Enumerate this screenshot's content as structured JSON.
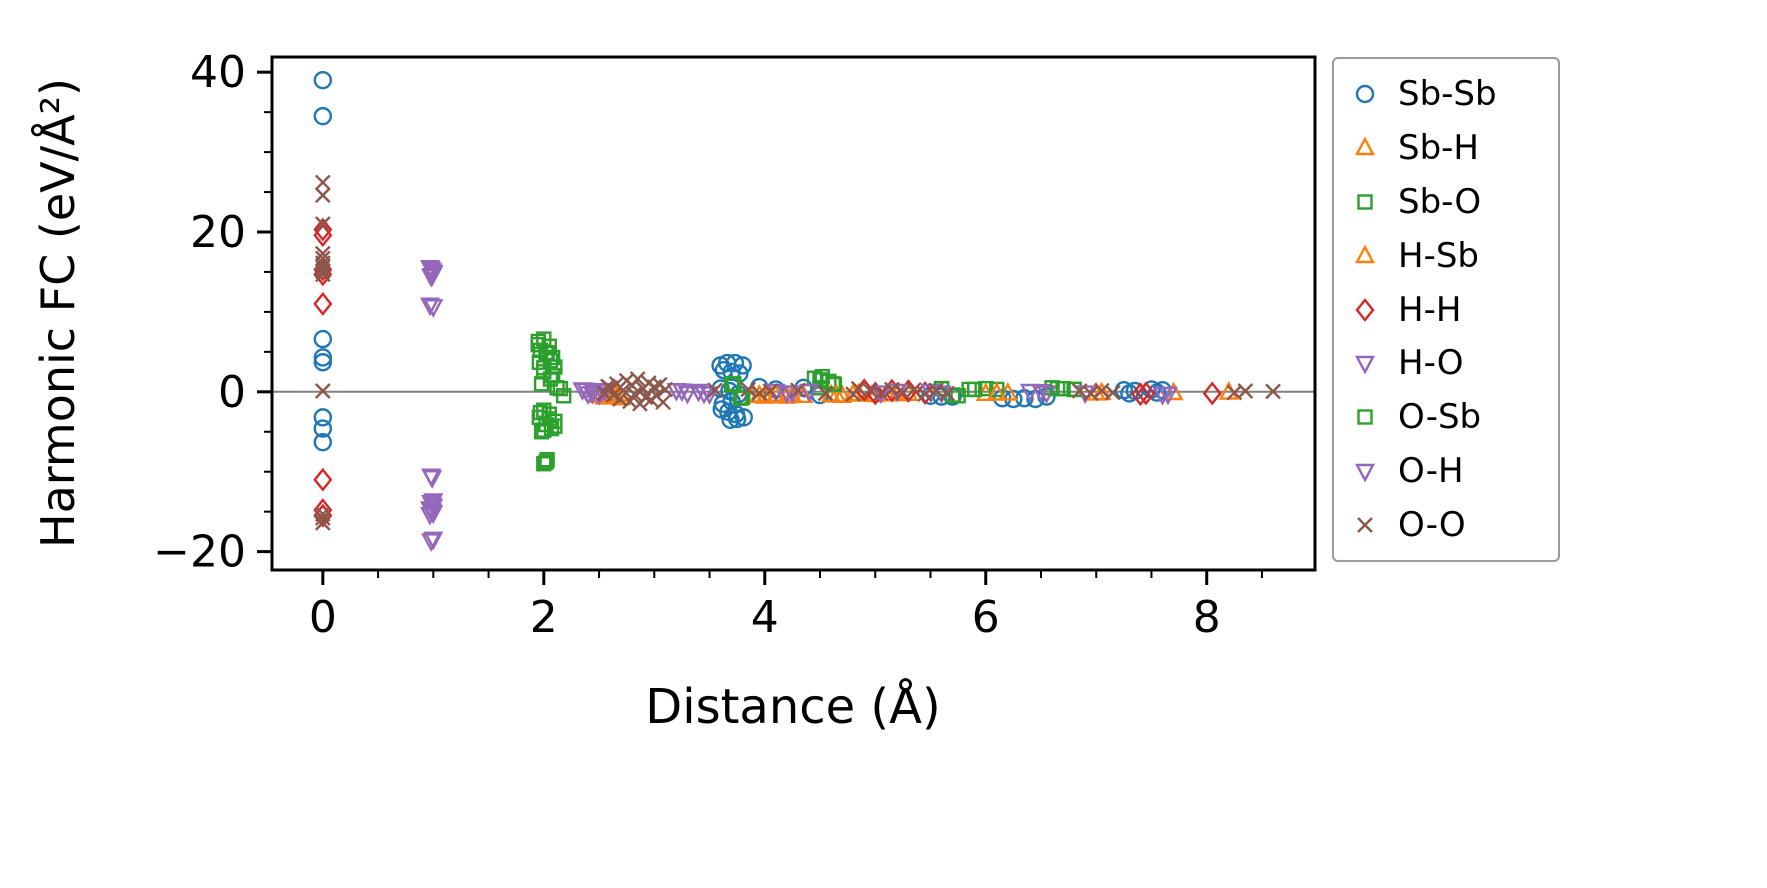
{
  "chart_data": {
    "type": "scatter",
    "title": "",
    "xlabel": "Distance (Å)",
    "ylabel": "Harmonic FC (eV/Å²)",
    "xlim": [
      -0.46,
      8.98
    ],
    "ylim": [
      -22.3,
      41.9
    ],
    "xticks": [
      0,
      2,
      4,
      6,
      8
    ],
    "xtick_labels": [
      "0",
      "2",
      "4",
      "6",
      "8"
    ],
    "yticks": [
      -20,
      0,
      20,
      40
    ],
    "ytick_labels": [
      "−20",
      "0",
      "20",
      "40"
    ],
    "minor_x_step": 0.5,
    "minor_y_step": 5,
    "grid": false,
    "zero_line": {
      "y": 0,
      "color": "#808080"
    },
    "legend_position": "outside-right",
    "frame_color": "#000000",
    "series": [
      {
        "name": "Sb-Sb",
        "marker": "circle",
        "color": "#1f77b4",
        "points": [
          [
            0,
            39
          ],
          [
            0,
            34.5
          ],
          [
            0,
            6.6
          ],
          [
            0,
            4.3
          ],
          [
            0,
            3.7
          ],
          [
            0,
            -3.2
          ],
          [
            0,
            -4.6
          ],
          [
            0,
            -6.3
          ],
          [
            3.6,
            3.3
          ],
          [
            3.66,
            3.6
          ],
          [
            3.73,
            3.6
          ],
          [
            3.8,
            3.3
          ],
          [
            3.63,
            2.7
          ],
          [
            3.7,
            2.5
          ],
          [
            3.77,
            2.3
          ],
          [
            3.6,
            0.4
          ],
          [
            3.68,
            0.1
          ],
          [
            3.76,
            -0.3
          ],
          [
            3.62,
            -1.5
          ],
          [
            3.7,
            -1.2
          ],
          [
            3.61,
            -2.2
          ],
          [
            3.67,
            -2.5
          ],
          [
            3.74,
            -2.8
          ],
          [
            3.81,
            -3.2
          ],
          [
            3.69,
            -3.5
          ],
          [
            3.75,
            -3.4
          ],
          [
            3.95,
            0.6
          ],
          [
            4.1,
            0.3
          ],
          [
            4.35,
            0.5
          ],
          [
            4.5,
            -0.4
          ],
          [
            5.5,
            -0.5
          ],
          [
            5.6,
            -0.6
          ],
          [
            5.7,
            -0.6
          ],
          [
            6.15,
            -0.8
          ],
          [
            6.25,
            -0.9
          ],
          [
            6.35,
            -0.8
          ],
          [
            6.45,
            -0.9
          ],
          [
            6.55,
            -0.6
          ],
          [
            7.25,
            0.2
          ],
          [
            7.3,
            -0.2
          ],
          [
            7.35,
            0.1
          ],
          [
            7.5,
            0.3
          ],
          [
            7.55,
            -0.1
          ],
          [
            7.6,
            0.2
          ]
        ]
      },
      {
        "name": "Sb-H",
        "marker": "triangle-up",
        "color": "#ff7f0e",
        "points": [
          [
            2.5,
            -0.5
          ],
          [
            2.55,
            -0.7
          ],
          [
            2.6,
            -0.6
          ],
          [
            2.65,
            -0.4
          ],
          [
            2.7,
            -0.8
          ],
          [
            3.9,
            -0.5
          ],
          [
            4.0,
            -0.6
          ],
          [
            4.1,
            -0.4
          ],
          [
            4.2,
            -0.6
          ],
          [
            4.35,
            -0.5
          ],
          [
            4.6,
            -0.4
          ],
          [
            4.7,
            -0.5
          ],
          [
            4.85,
            -0.3
          ],
          [
            5.0,
            -0.4
          ],
          [
            5.2,
            -0.3
          ],
          [
            6.0,
            -0.25
          ],
          [
            6.2,
            -0.2
          ],
          [
            7.0,
            -0.2
          ],
          [
            7.7,
            -0.15
          ]
        ]
      },
      {
        "name": "Sb-O",
        "marker": "square",
        "color": "#2ca02c",
        "points": [
          [
            1.95,
            6.3
          ],
          [
            2.0,
            6.6
          ],
          [
            2.05,
            5.7
          ],
          [
            1.97,
            5.2
          ],
          [
            2.02,
            4.8
          ],
          [
            2.08,
            4.3
          ],
          [
            1.96,
            3.7
          ],
          [
            2.1,
            3.1
          ],
          [
            2.0,
            2.5
          ],
          [
            2.06,
            1.6
          ],
          [
            1.98,
            1.0
          ],
          [
            2.12,
            0.5
          ],
          [
            2.0,
            -2.3
          ],
          [
            2.05,
            -2.8
          ],
          [
            1.96,
            -3.2
          ],
          [
            2.1,
            -3.7
          ],
          [
            2.02,
            -4.1
          ],
          [
            2.07,
            -4.6
          ],
          [
            1.98,
            -5.0
          ],
          [
            2.03,
            -8.5
          ],
          [
            2.0,
            -9.0
          ],
          [
            2.15,
            0.4
          ],
          [
            2.18,
            -0.5
          ],
          [
            3.7,
            0.9
          ],
          [
            3.8,
            -0.7
          ],
          [
            4.45,
            1.7
          ],
          [
            4.52,
            1.9
          ],
          [
            4.58,
            1.3
          ],
          [
            4.63,
            0.9
          ],
          [
            4.5,
            0.5
          ],
          [
            5.6,
            0.4
          ],
          [
            5.7,
            -0.4
          ],
          [
            5.85,
            0.3
          ],
          [
            6.0,
            0.4
          ],
          [
            6.1,
            0.3
          ],
          [
            6.6,
            0.5
          ],
          [
            6.7,
            0.4
          ],
          [
            6.8,
            0.3
          ]
        ]
      },
      {
        "name": "H-Sb",
        "marker": "triangle-up",
        "color": "#ff7f0e",
        "points": [
          [
            2.48,
            -0.4
          ],
          [
            2.56,
            -0.3
          ],
          [
            2.62,
            -0.5
          ],
          [
            2.68,
            -0.35
          ],
          [
            3.95,
            -0.45
          ],
          [
            4.05,
            -0.55
          ],
          [
            4.25,
            -0.45
          ],
          [
            4.65,
            -0.45
          ],
          [
            4.8,
            -0.35
          ],
          [
            5.1,
            -0.3
          ],
          [
            5.3,
            -0.25
          ],
          [
            6.1,
            -0.2
          ],
          [
            7.05,
            -0.15
          ],
          [
            8.2,
            -0.1
          ]
        ]
      },
      {
        "name": "H-H",
        "marker": "diamond",
        "color": "#d62728",
        "points": [
          [
            0,
            20.3
          ],
          [
            0,
            19.6
          ],
          [
            0,
            15.3
          ],
          [
            0,
            14.7
          ],
          [
            0,
            11.0
          ],
          [
            0,
            -11.0
          ],
          [
            0,
            -14.8
          ],
          [
            0,
            -15.5
          ],
          [
            4.9,
            0.2
          ],
          [
            5.0,
            -0.2
          ],
          [
            5.15,
            0.15
          ],
          [
            5.3,
            0.1
          ],
          [
            5.45,
            -0.15
          ],
          [
            7.4,
            -0.3
          ],
          [
            7.45,
            -0.2
          ],
          [
            8.05,
            -0.2
          ]
        ]
      },
      {
        "name": "H-O",
        "marker": "triangle-down",
        "color": "#9467bd",
        "points": [
          [
            0.97,
            15.6
          ],
          [
            0.99,
            15.2
          ],
          [
            1.0,
            14.9
          ],
          [
            0.98,
            14.5
          ],
          [
            1.0,
            10.7
          ],
          [
            0.98,
            -10.5
          ],
          [
            1.0,
            -13.6
          ],
          [
            0.99,
            -14.1
          ],
          [
            0.97,
            -14.6
          ],
          [
            1.0,
            -15.1
          ],
          [
            0.98,
            -18.6
          ],
          [
            2.35,
            0.3
          ],
          [
            2.4,
            -0.2
          ],
          [
            2.45,
            0.15
          ],
          [
            2.5,
            -0.3
          ],
          [
            2.55,
            0.2
          ],
          [
            3.2,
            0.2
          ],
          [
            3.3,
            -0.15
          ],
          [
            3.4,
            0.1
          ],
          [
            3.5,
            -0.2
          ],
          [
            4.1,
            0.1
          ],
          [
            4.25,
            -0.1
          ],
          [
            5.05,
            -0.1
          ],
          [
            5.5,
            0.1
          ],
          [
            6.4,
            0.1
          ],
          [
            6.55,
            -0.1
          ],
          [
            7.6,
            -0.3
          ]
        ]
      },
      {
        "name": "O-Sb",
        "marker": "square",
        "color": "#2ca02c",
        "points": [
          [
            1.95,
            5.9
          ],
          [
            2.03,
            4.9
          ],
          [
            2.06,
            3.9
          ],
          [
            2.0,
            3.0
          ],
          [
            2.08,
            2.0
          ],
          [
            1.97,
            -2.6
          ],
          [
            2.05,
            -3.4
          ],
          [
            2.1,
            -4.3
          ],
          [
            2.0,
            -4.8
          ],
          [
            2.02,
            -8.8
          ],
          [
            3.72,
            1.0
          ],
          [
            3.78,
            -0.8
          ],
          [
            4.5,
            1.5
          ],
          [
            4.62,
            1.0
          ],
          [
            5.6,
            0.4
          ],
          [
            5.75,
            -0.5
          ],
          [
            5.9,
            0.3
          ],
          [
            6.65,
            0.4
          ],
          [
            6.8,
            0.3
          ]
        ]
      },
      {
        "name": "O-H",
        "marker": "triangle-down",
        "color": "#9467bd",
        "points": [
          [
            0.98,
            15.4
          ],
          [
            1.0,
            15.0
          ],
          [
            0.99,
            14.6
          ],
          [
            0.97,
            10.9
          ],
          [
            0.99,
            -10.7
          ],
          [
            0.98,
            -13.8
          ],
          [
            1.0,
            -14.3
          ],
          [
            0.99,
            -14.9
          ],
          [
            0.97,
            -15.3
          ],
          [
            1.0,
            -18.4
          ],
          [
            2.38,
            0.25
          ],
          [
            2.44,
            -0.15
          ],
          [
            2.52,
            0.1
          ],
          [
            3.25,
            0.15
          ],
          [
            3.45,
            -0.15
          ],
          [
            4.2,
            -0.1
          ],
          [
            4.4,
            0.1
          ],
          [
            5.2,
            0.1
          ],
          [
            5.6,
            -0.1
          ],
          [
            6.5,
            0.08
          ],
          [
            6.9,
            -0.1
          ],
          [
            7.65,
            -0.25
          ]
        ]
      },
      {
        "name": "O-O",
        "marker": "x",
        "color": "#8c564b",
        "points": [
          [
            0,
            26.2
          ],
          [
            0,
            24.6
          ],
          [
            0,
            21.0
          ],
          [
            0,
            17.3
          ],
          [
            0,
            16.7
          ],
          [
            0,
            16.1
          ],
          [
            0,
            15.6
          ],
          [
            0,
            15.1
          ],
          [
            0,
            14.7
          ],
          [
            0,
            0.1
          ],
          [
            0,
            -15.3
          ],
          [
            0,
            -15.8
          ],
          [
            0,
            -16.4
          ],
          [
            2.55,
            -0.2
          ],
          [
            2.58,
            0.7
          ],
          [
            2.6,
            0.5
          ],
          [
            2.63,
            -0.4
          ],
          [
            2.66,
            1.0
          ],
          [
            2.69,
            -0.9
          ],
          [
            2.72,
            0.2
          ],
          [
            2.75,
            1.4
          ],
          [
            2.78,
            -1.2
          ],
          [
            2.8,
            0.8
          ],
          [
            2.82,
            -0.3
          ],
          [
            2.85,
            1.6
          ],
          [
            2.87,
            -1.5
          ],
          [
            2.9,
            0.4
          ],
          [
            2.92,
            -0.7
          ],
          [
            2.95,
            1.1
          ],
          [
            2.97,
            -1.0
          ],
          [
            3.0,
            0.6
          ],
          [
            3.02,
            -0.5
          ],
          [
            3.05,
            0.9
          ],
          [
            3.08,
            -1.3
          ],
          [
            3.1,
            0.3
          ],
          [
            3.55,
            0.2
          ],
          [
            3.85,
            0.3
          ],
          [
            3.95,
            -0.2
          ],
          [
            4.05,
            0.1
          ],
          [
            4.3,
            0.2
          ],
          [
            4.55,
            -0.2
          ],
          [
            4.8,
            -0.3
          ],
          [
            4.85,
            0.4
          ],
          [
            4.95,
            0.2
          ],
          [
            5.05,
            -0.2
          ],
          [
            5.15,
            0.3
          ],
          [
            5.25,
            -0.1
          ],
          [
            5.35,
            0.25
          ],
          [
            5.45,
            -0.3
          ],
          [
            5.55,
            0.2
          ],
          [
            5.65,
            -0.2
          ],
          [
            6.85,
            0.1
          ],
          [
            6.95,
            -0.2
          ],
          [
            7.05,
            0.15
          ],
          [
            7.15,
            -0.1
          ],
          [
            8.25,
            -0.1
          ],
          [
            8.35,
            0.1
          ],
          [
            8.6,
            0.05
          ]
        ]
      }
    ]
  }
}
